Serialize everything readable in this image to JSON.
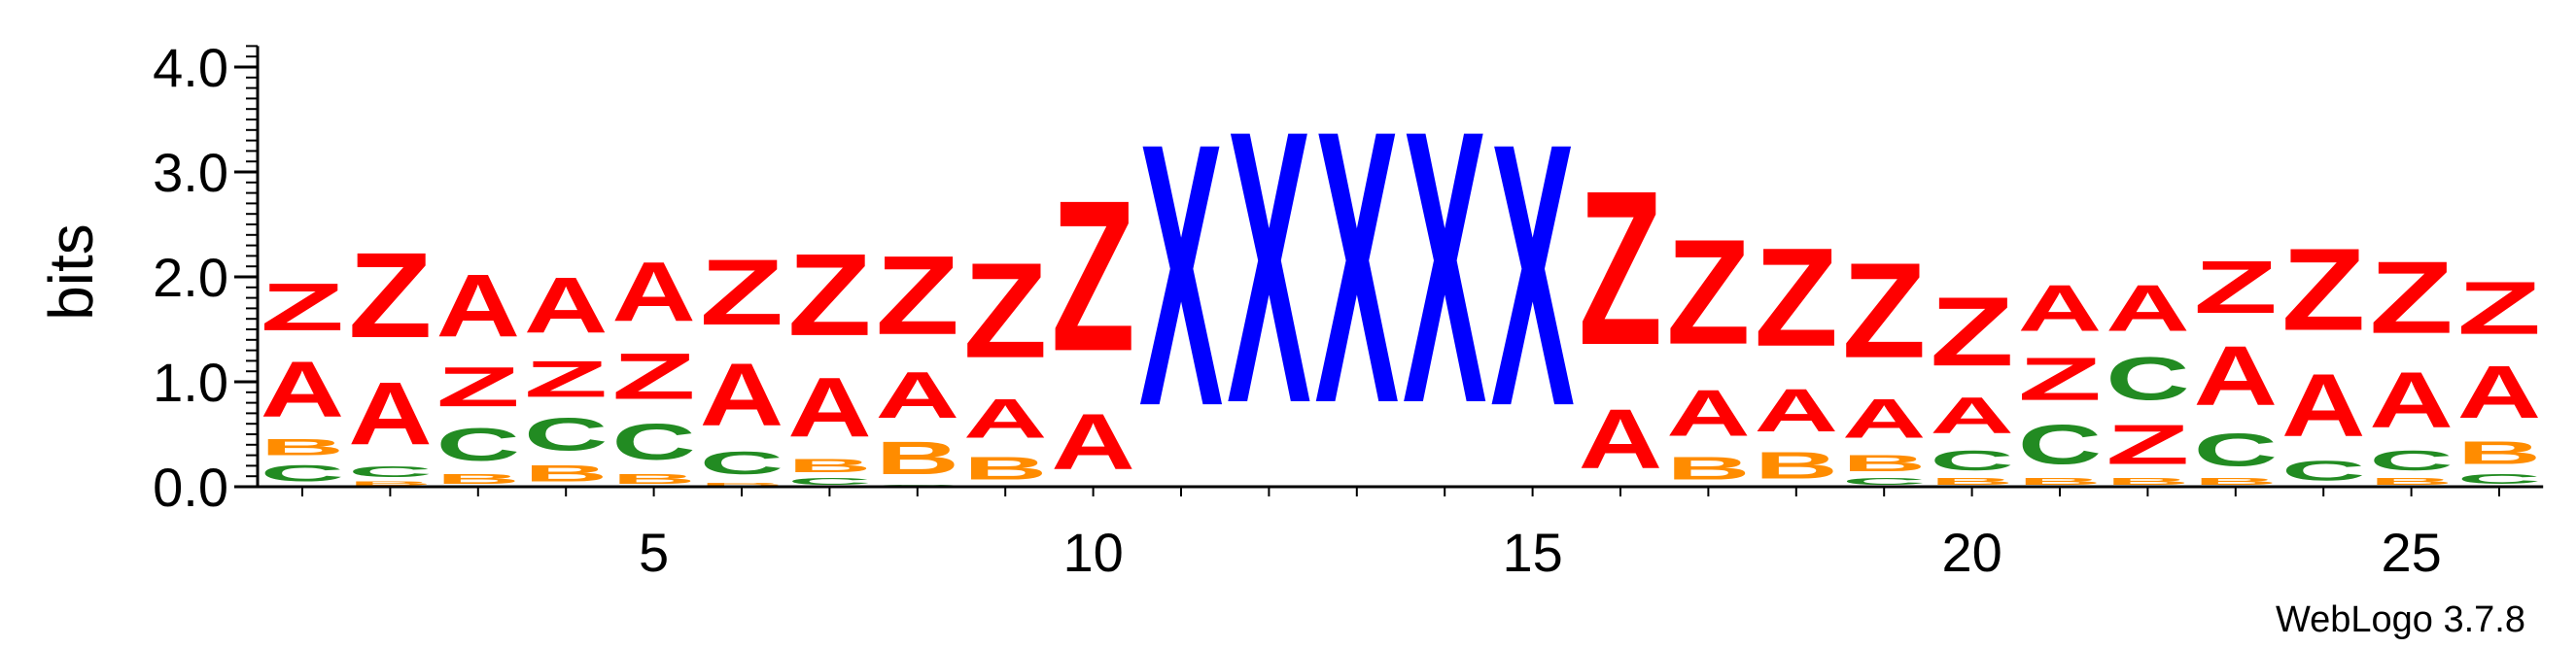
{
  "chart_data": {
    "type": "sequence-logo",
    "ylabel": "bits",
    "ylim": [
      0,
      4.2
    ],
    "yticks": [
      "0.0",
      "1.0",
      "2.0",
      "3.0",
      "4.0"
    ],
    "xticks": [
      5,
      10,
      15,
      20,
      25
    ],
    "credit": "WebLogo 3.7.8",
    "colors": {
      "A": "#ff0000",
      "Z": "#ff0000",
      "B": "#ff8c00",
      "C": "#228b22",
      "X": "#0000ff"
    },
    "positions": [
      {
        "pos": 1,
        "stack": [
          [
            "C",
            0.25
          ],
          [
            "B",
            0.25
          ],
          [
            "A",
            0.85
          ],
          [
            "Z",
            0.72
          ]
        ]
      },
      {
        "pos": 2,
        "stack": [
          [
            "B",
            0.06
          ],
          [
            "C",
            0.16
          ],
          [
            "A",
            0.95
          ],
          [
            "Z",
            1.3
          ]
        ]
      },
      {
        "pos": 3,
        "stack": [
          [
            "B",
            0.15
          ],
          [
            "C",
            0.5
          ],
          [
            "Z",
            0.6
          ],
          [
            "A",
            0.95
          ]
        ]
      },
      {
        "pos": 4,
        "stack": [
          [
            "B",
            0.25
          ],
          [
            "C",
            0.5
          ],
          [
            "Z",
            0.55
          ],
          [
            "A",
            0.85
          ]
        ]
      },
      {
        "pos": 5,
        "stack": [
          [
            "B",
            0.15
          ],
          [
            "C",
            0.55
          ],
          [
            "Z",
            0.7
          ],
          [
            "A",
            0.9
          ]
        ]
      },
      {
        "pos": 6,
        "stack": [
          [
            "B",
            0.05
          ],
          [
            "C",
            0.35
          ],
          [
            "A",
            0.95
          ],
          [
            "Z",
            1.0
          ]
        ]
      },
      {
        "pos": 7,
        "stack": [
          [
            "C",
            0.1
          ],
          [
            "B",
            0.2
          ],
          [
            "A",
            0.9
          ],
          [
            "Z",
            1.25
          ]
        ]
      },
      {
        "pos": 8,
        "stack": [
          [
            "C",
            0.02
          ],
          [
            "B",
            0.5
          ],
          [
            "A",
            0.7
          ],
          [
            "Z",
            1.2
          ]
        ]
      },
      {
        "pos": 9,
        "stack": [
          [
            "B",
            0.35
          ],
          [
            "A",
            0.6
          ],
          [
            "Z",
            1.45
          ]
        ]
      },
      {
        "pos": 10,
        "stack": [
          [
            "A",
            0.85
          ],
          [
            "Z",
            2.3
          ]
        ]
      },
      {
        "pos": 11,
        "stack": [
          [
            "X",
            4.0
          ]
        ]
      },
      {
        "pos": 12,
        "stack": [
          [
            "X",
            4.15
          ]
        ]
      },
      {
        "pos": 13,
        "stack": [
          [
            "X",
            4.15
          ]
        ]
      },
      {
        "pos": 14,
        "stack": [
          [
            "X",
            4.15
          ]
        ]
      },
      {
        "pos": 15,
        "stack": [
          [
            "X",
            4.0
          ]
        ]
      },
      {
        "pos": 16,
        "stack": [
          [
            "A",
            0.9
          ],
          [
            "Z",
            2.35
          ]
        ]
      },
      {
        "pos": 17,
        "stack": [
          [
            "B",
            0.35
          ],
          [
            "A",
            0.7
          ],
          [
            "Z",
            1.6
          ]
        ]
      },
      {
        "pos": 18,
        "stack": [
          [
            "B",
            0.4
          ],
          [
            "A",
            0.65
          ],
          [
            "Z",
            1.5
          ]
        ]
      },
      {
        "pos": 19,
        "stack": [
          [
            "C",
            0.1
          ],
          [
            "B",
            0.25
          ],
          [
            "A",
            0.6
          ],
          [
            "Z",
            1.45
          ]
        ]
      },
      {
        "pos": 20,
        "stack": [
          [
            "B",
            0.1
          ],
          [
            "C",
            0.3
          ],
          [
            "A",
            0.55
          ],
          [
            "Z",
            1.05
          ]
        ]
      },
      {
        "pos": 21,
        "stack": [
          [
            "B",
            0.1
          ],
          [
            "C",
            0.6
          ],
          [
            "Z",
            0.65
          ],
          [
            "A",
            0.7
          ]
        ]
      },
      {
        "pos": 22,
        "stack": [
          [
            "B",
            0.1
          ],
          [
            "Z",
            0.6
          ],
          [
            "C",
            0.65
          ],
          [
            "A",
            0.7
          ]
        ]
      },
      {
        "pos": 23,
        "stack": [
          [
            "B",
            0.1
          ],
          [
            "C",
            0.5
          ],
          [
            "A",
            0.9
          ],
          [
            "Z",
            0.8
          ]
        ]
      },
      {
        "pos": 24,
        "stack": [
          [
            "C",
            0.3
          ],
          [
            "A",
            0.95
          ],
          [
            "Z",
            1.25
          ]
        ]
      },
      {
        "pos": 25,
        "stack": [
          [
            "B",
            0.1
          ],
          [
            "C",
            0.3
          ],
          [
            "A",
            0.85
          ],
          [
            "Z",
            1.1
          ]
        ]
      },
      {
        "pos": 26,
        "stack": [
          [
            "C",
            0.15
          ],
          [
            "B",
            0.35
          ],
          [
            "A",
            0.8
          ],
          [
            "Z",
            0.8
          ]
        ]
      }
    ]
  }
}
